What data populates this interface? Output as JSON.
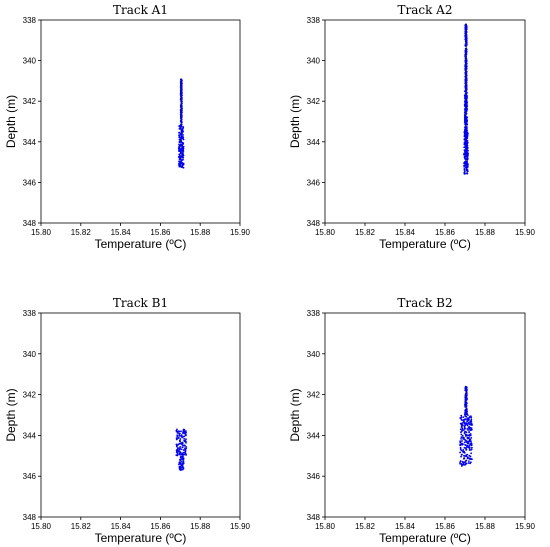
{
  "chart_data": [
    {
      "type": "scatter",
      "title": "Track A1",
      "xlabel": "Temperature (ºC)",
      "ylabel": "Depth (m)",
      "xlim": [
        15.8,
        15.9
      ],
      "ylim": [
        338,
        348
      ],
      "y_inverted": true,
      "xticks": [
        "15.80",
        "15.82",
        "15.84",
        "15.86",
        "15.88",
        "15.90"
      ],
      "yticks": [
        "338",
        "340",
        "342",
        "344",
        "346",
        "348"
      ],
      "color": "#0000ff",
      "cluster": {
        "x_center": 15.8705,
        "x_spread": 0.0012,
        "depth_min": 340.9,
        "depth_max": 345.3,
        "segments": [
          [
            340.9,
            343.2,
            0.0003
          ],
          [
            343.2,
            345.3,
            0.0012
          ]
        ]
      }
    },
    {
      "type": "scatter",
      "title": "Track A2",
      "xlabel": "Temperature (ºC)",
      "ylabel": "Depth (m)",
      "xlim": [
        15.8,
        15.9
      ],
      "ylim": [
        338,
        348
      ],
      "y_inverted": true,
      "xticks": [
        "15.80",
        "15.82",
        "15.84",
        "15.86",
        "15.88",
        "15.90"
      ],
      "yticks": [
        "338",
        "340",
        "342",
        "344",
        "346",
        "348"
      ],
      "color": "#0000ff",
      "cluster": {
        "x_center": 15.8705,
        "x_spread": 0.001,
        "depth_min": 338.2,
        "depth_max": 345.6,
        "segments": [
          [
            338.2,
            341.5,
            0.0004
          ],
          [
            341.5,
            343.5,
            0.0006
          ],
          [
            343.5,
            345.6,
            0.001
          ]
        ]
      }
    },
    {
      "type": "scatter",
      "title": "Track B1",
      "xlabel": "Temperature (ºC)",
      "ylabel": "Depth (m)",
      "xlim": [
        15.8,
        15.9
      ],
      "ylim": [
        338,
        348
      ],
      "y_inverted": true,
      "xticks": [
        "15.80",
        "15.82",
        "15.84",
        "15.86",
        "15.88",
        "15.90"
      ],
      "yticks": [
        "338",
        "340",
        "342",
        "344",
        "346",
        "348"
      ],
      "color": "#0000ff",
      "cluster": {
        "x_center": 15.8705,
        "x_spread": 0.0025,
        "depth_min": 343.7,
        "depth_max": 345.7,
        "segments": [
          [
            343.7,
            345.0,
            0.0025
          ],
          [
            345.0,
            345.7,
            0.0012
          ]
        ]
      }
    },
    {
      "type": "scatter",
      "title": "Track B2",
      "xlabel": "Temperature (ºC)",
      "ylabel": "Depth (m)",
      "xlim": [
        15.8,
        15.9
      ],
      "ylim": [
        338,
        348
      ],
      "y_inverted": true,
      "xticks": [
        "15.80",
        "15.82",
        "15.84",
        "15.86",
        "15.88",
        "15.90"
      ],
      "yticks": [
        "338",
        "340",
        "342",
        "344",
        "346",
        "348"
      ],
      "color": "#0000ff",
      "cluster": {
        "x_center": 15.8705,
        "x_spread": 0.003,
        "depth_min": 341.6,
        "depth_max": 345.5,
        "segments": [
          [
            341.6,
            343.0,
            0.0005
          ],
          [
            343.0,
            345.5,
            0.003
          ]
        ]
      }
    }
  ]
}
